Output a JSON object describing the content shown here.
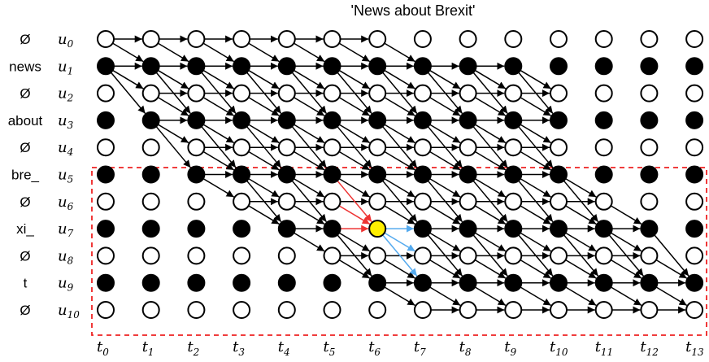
{
  "title": "'News about Brexit'",
  "colors": {
    "filled": "#000000",
    "empty": "#ffffff",
    "highlight": "#ffee00",
    "red_arrow": "#ee3333",
    "blue_arrow": "#55aaee",
    "box": "#ee2222"
  },
  "rows": [
    {
      "token": "Ø",
      "sym": "u",
      "sub": "0",
      "blank": true
    },
    {
      "token": "news",
      "sym": "u",
      "sub": "1",
      "blank": false
    },
    {
      "token": "Ø",
      "sym": "u",
      "sub": "2",
      "blank": true
    },
    {
      "token": "about",
      "sym": "u",
      "sub": "3",
      "blank": false
    },
    {
      "token": "Ø",
      "sym": "u",
      "sub": "4",
      "blank": true
    },
    {
      "token": "bre_",
      "sym": "u",
      "sub": "5",
      "blank": false
    },
    {
      "token": "Ø",
      "sym": "u",
      "sub": "6",
      "blank": true
    },
    {
      "token": "xi_",
      "sym": "u",
      "sub": "7",
      "blank": false
    },
    {
      "token": "Ø",
      "sym": "u",
      "sub": "8",
      "blank": true
    },
    {
      "token": "t",
      "sym": "u",
      "sub": "9",
      "blank": false
    },
    {
      "token": "Ø",
      "sym": "u",
      "sub": "10",
      "blank": true
    }
  ],
  "columns": [
    {
      "sym": "t",
      "sub": "0"
    },
    {
      "sym": "t",
      "sub": "1"
    },
    {
      "sym": "t",
      "sub": "2"
    },
    {
      "sym": "t",
      "sub": "3"
    },
    {
      "sym": "t",
      "sub": "4"
    },
    {
      "sym": "t",
      "sub": "5"
    },
    {
      "sym": "t",
      "sub": "6"
    },
    {
      "sym": "t",
      "sub": "7"
    },
    {
      "sym": "t",
      "sub": "8"
    },
    {
      "sym": "t",
      "sub": "9"
    },
    {
      "sym": "t",
      "sub": "10"
    },
    {
      "sym": "t",
      "sub": "11"
    },
    {
      "sym": "t",
      "sub": "12"
    },
    {
      "sym": "t",
      "sub": "13"
    }
  ],
  "valid_ranges": [
    [
      0,
      6
    ],
    [
      0,
      9
    ],
    [
      1,
      10
    ],
    [
      1,
      10
    ],
    [
      2,
      10
    ],
    [
      2,
      10
    ],
    [
      3,
      11
    ],
    [
      4,
      12
    ],
    [
      5,
      12
    ],
    [
      6,
      13
    ],
    [
      7,
      13
    ]
  ],
  "highlight": {
    "row": 7,
    "col": 6
  },
  "red_sources": [
    [
      5,
      5
    ],
    [
      6,
      5
    ],
    [
      7,
      5
    ]
  ],
  "blue_targets": [
    [
      7,
      7
    ],
    [
      8,
      7
    ],
    [
      9,
      7
    ]
  ]
}
